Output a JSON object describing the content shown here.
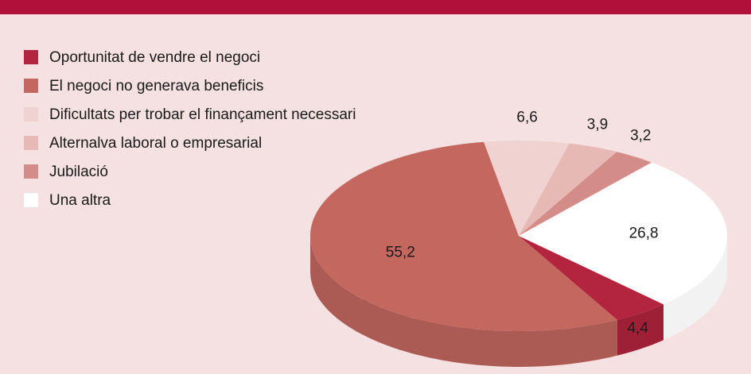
{
  "chart_data": {
    "type": "pie",
    "categories": [
      "Oportunitat de vendre el negoci",
      "El negoci no generava beneficis",
      "Dificultats per trobar el finançament necessari",
      "Alternalva laboral o empresarial",
      "Jubilació",
      "Una altra"
    ],
    "values": [
      4.4,
      55.2,
      6.6,
      3.9,
      3.2,
      26.8
    ],
    "value_labels": [
      "4,4",
      "55,2",
      "6,6",
      "3,9",
      "3,2",
      "26,8"
    ],
    "colors": [
      "#b3243f",
      "#c4675f",
      "#f0d3d0",
      "#e6b9b4",
      "#d48c88",
      "#ffffff"
    ]
  }
}
